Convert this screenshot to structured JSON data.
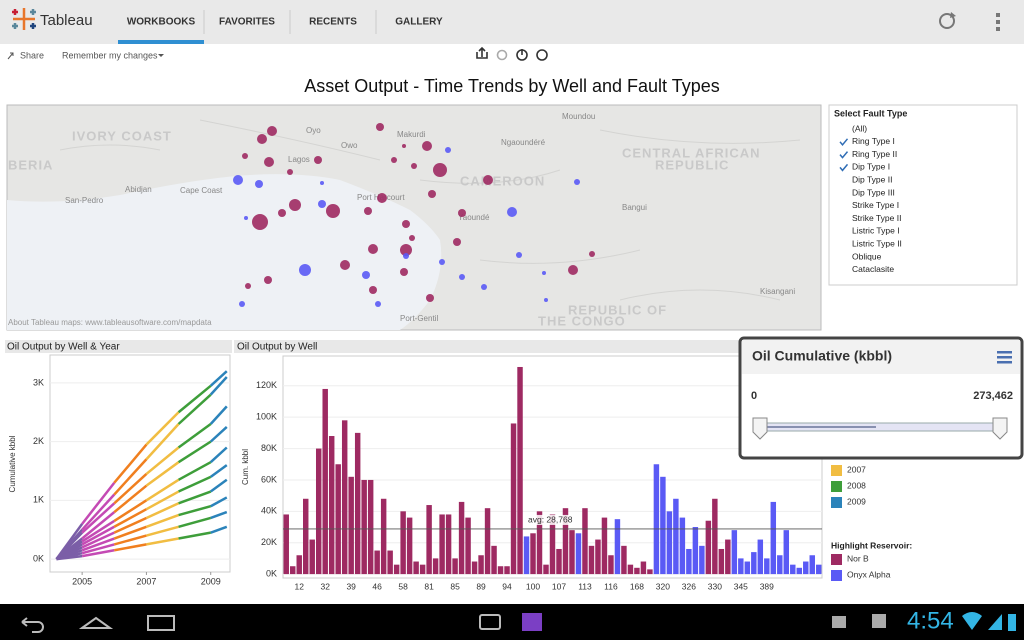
{
  "app": {
    "name": "Tableau",
    "tabs": [
      "WORKBOOKS",
      "FAVORITES",
      "RECENTS",
      "GALLERY"
    ],
    "selected_tab": 0
  },
  "toolbar": {
    "share": "Share",
    "remember": "Remember my changes"
  },
  "dashboard_title": "Asset Output - Time Trends by Well and Fault Types",
  "map": {
    "attribution": "About Tableau maps: www.tableausoftware.com/mapdata",
    "labels": [
      "IVORY COAST",
      "BERIA",
      "CENTRAL AFRICAN",
      "REPUBLIC",
      "CAMEROON",
      "REPUBLIC OF",
      "THE CONGO",
      "Oyo",
      "Makurdi",
      "Ngaoundéré",
      "Moundou",
      "Owo",
      "Abidjan",
      "Cape Coast",
      "San-Pedro",
      "Port Harcourt",
      "Yaoundé",
      "Bangui",
      "Kisangani",
      "Port-Gentil",
      "Lagos"
    ]
  },
  "filter": {
    "title": "Select Fault Type",
    "options": [
      {
        "label": "(All)",
        "checked": false
      },
      {
        "label": "Ring Type I",
        "checked": true
      },
      {
        "label": "Ring Type II",
        "checked": true
      },
      {
        "label": "Dip Type I",
        "checked": true
      },
      {
        "label": "Dip Type II",
        "checked": false
      },
      {
        "label": "Dip Type III",
        "checked": false
      },
      {
        "label": "Strike Type I",
        "checked": false
      },
      {
        "label": "Strike Type II",
        "checked": false
      },
      {
        "label": "Listric Type I",
        "checked": false
      },
      {
        "label": "Listric Type II",
        "checked": false
      },
      {
        "label": "Oblique",
        "checked": false
      },
      {
        "label": "Cataclasite",
        "checked": false
      }
    ]
  },
  "chart_data": [
    {
      "type": "line",
      "title": "Oil Output by Well & Year",
      "y_label": "Cumulative kbbl",
      "x": [
        2004.2,
        2005,
        2006,
        2007,
        2008,
        2009,
        2009.5
      ],
      "xlim": [
        2004,
        2009.6
      ],
      "xticks": [
        2005,
        2007,
        2009
      ],
      "ylim": [
        -220,
        3475
      ],
      "yticks": [
        {
          "value": 0,
          "label": "0K"
        },
        {
          "value": 1000,
          "label": "1K"
        },
        {
          "value": 2000,
          "label": "2K"
        },
        {
          "value": 3000,
          "label": "3K"
        }
      ],
      "grid": true,
      "segment_colors": [
        "#7b5ea7",
        "#c44ab4",
        "#f07f1f",
        "#f1bd42",
        "#3e9e3a",
        "#2b83ba"
      ],
      "series": [
        {
          "values": [
            0,
            600,
            1300,
            1950,
            2500,
            2950,
            3200
          ]
        },
        {
          "values": [
            0,
            500,
            1100,
            1700,
            2300,
            2800,
            3100
          ]
        },
        {
          "values": [
            0,
            450,
            950,
            1450,
            1900,
            2300,
            2600
          ]
        },
        {
          "values": [
            0,
            350,
            800,
            1250,
            1650,
            2000,
            2250
          ]
        },
        {
          "values": [
            0,
            300,
            650,
            1000,
            1350,
            1650,
            1900
          ]
        },
        {
          "values": [
            0,
            250,
            550,
            850,
            1150,
            1400,
            1600
          ]
        },
        {
          "values": [
            0,
            200,
            450,
            700,
            950,
            1150,
            1350
          ]
        },
        {
          "values": [
            0,
            150,
            350,
            550,
            750,
            900,
            1050
          ]
        },
        {
          "values": [
            0,
            100,
            250,
            400,
            550,
            700,
            800
          ]
        },
        {
          "values": [
            0,
            50,
            150,
            250,
            350,
            450,
            550
          ]
        }
      ]
    },
    {
      "type": "bar",
      "title": "Oil Output by Well",
      "y_label": "Cum. kbbl",
      "categories": [
        null,
        null,
        "12",
        null,
        null,
        null,
        "32",
        null,
        null,
        null,
        "39",
        null,
        null,
        null,
        "46",
        null,
        null,
        null,
        "58",
        null,
        null,
        null,
        "81",
        null,
        null,
        null,
        "85",
        null,
        null,
        null,
        "89",
        null,
        null,
        null,
        "94",
        null,
        null,
        null,
        "100",
        null,
        null,
        null,
        "107",
        null,
        null,
        null,
        "113",
        null,
        null,
        null,
        "116",
        null,
        null,
        null,
        "168",
        null,
        null,
        null,
        "320",
        null,
        null,
        null,
        "326",
        null,
        null,
        null,
        "330",
        null,
        null,
        null,
        "345",
        null,
        null,
        null,
        "389",
        null,
        null,
        null,
        null,
        null,
        null,
        null,
        null
      ],
      "series": [
        {
          "name": "Nor B",
          "color": "#9e2a62",
          "values": [
            38000,
            5000,
            12000,
            48000,
            22000,
            80000,
            118000,
            88000,
            70000,
            98000,
            62000,
            90000,
            60000,
            60000,
            15000,
            48000,
            15000,
            6000,
            40000,
            36000,
            8000,
            6000,
            44000,
            10000,
            38000,
            38000,
            10000,
            46000,
            36000,
            8000,
            12000,
            42000,
            18000,
            5000,
            5000,
            96000,
            132000,
            null,
            26000,
            40000,
            6000,
            38000,
            16000,
            42000,
            28000,
            null,
            42000,
            18000,
            22000,
            36000,
            12000,
            null,
            18000,
            6000,
            4000,
            8000,
            3000,
            null,
            null,
            null,
            null,
            null,
            null,
            null,
            null,
            34000,
            48000,
            16000,
            22000,
            null,
            null,
            null,
            null,
            null,
            null,
            null,
            null,
            null,
            null,
            null,
            null,
            null,
            null
          ]
        },
        {
          "name": "Onyx Alpha",
          "color": "#5a5af5",
          "values": [
            null,
            null,
            null,
            null,
            null,
            null,
            null,
            null,
            null,
            null,
            null,
            null,
            null,
            null,
            null,
            null,
            null,
            null,
            null,
            null,
            null,
            null,
            null,
            null,
            null,
            null,
            null,
            null,
            null,
            null,
            null,
            null,
            null,
            null,
            null,
            null,
            null,
            24000,
            null,
            null,
            null,
            null,
            null,
            null,
            null,
            26000,
            null,
            null,
            null,
            null,
            null,
            35000,
            null,
            null,
            null,
            null,
            null,
            70000,
            62000,
            40000,
            48000,
            36000,
            16000,
            30000,
            18000,
            null,
            null,
            null,
            null,
            28000,
            10000,
            8000,
            14000,
            22000,
            10000,
            46000,
            12000,
            28000,
            6000,
            4000,
            8000,
            12000,
            6000
          ]
        }
      ],
      "ylim": [
        -2500,
        139000
      ],
      "yticks": [
        {
          "value": 0,
          "label": "0K"
        },
        {
          "value": 20000,
          "label": "20K"
        },
        {
          "value": 40000,
          "label": "40K"
        },
        {
          "value": 60000,
          "label": "60K"
        },
        {
          "value": 80000,
          "label": "80K"
        },
        {
          "value": 100000,
          "label": "100K"
        },
        {
          "value": 120000,
          "label": "120K"
        }
      ],
      "grid": true,
      "reference_line": {
        "value": 28768,
        "label": "avg: 28,768"
      }
    }
  ],
  "year_legend": [
    {
      "label": "2007",
      "color": "#f1bd42"
    },
    {
      "label": "2008",
      "color": "#3e9e3a"
    },
    {
      "label": "2009",
      "color": "#2b83ba"
    }
  ],
  "highlight_title": "Highlight Reservoir:",
  "popup": {
    "title": "Oil Cumulative (kbbl)",
    "min": "0",
    "max": "273,462"
  },
  "status": {
    "time": "4:54"
  }
}
